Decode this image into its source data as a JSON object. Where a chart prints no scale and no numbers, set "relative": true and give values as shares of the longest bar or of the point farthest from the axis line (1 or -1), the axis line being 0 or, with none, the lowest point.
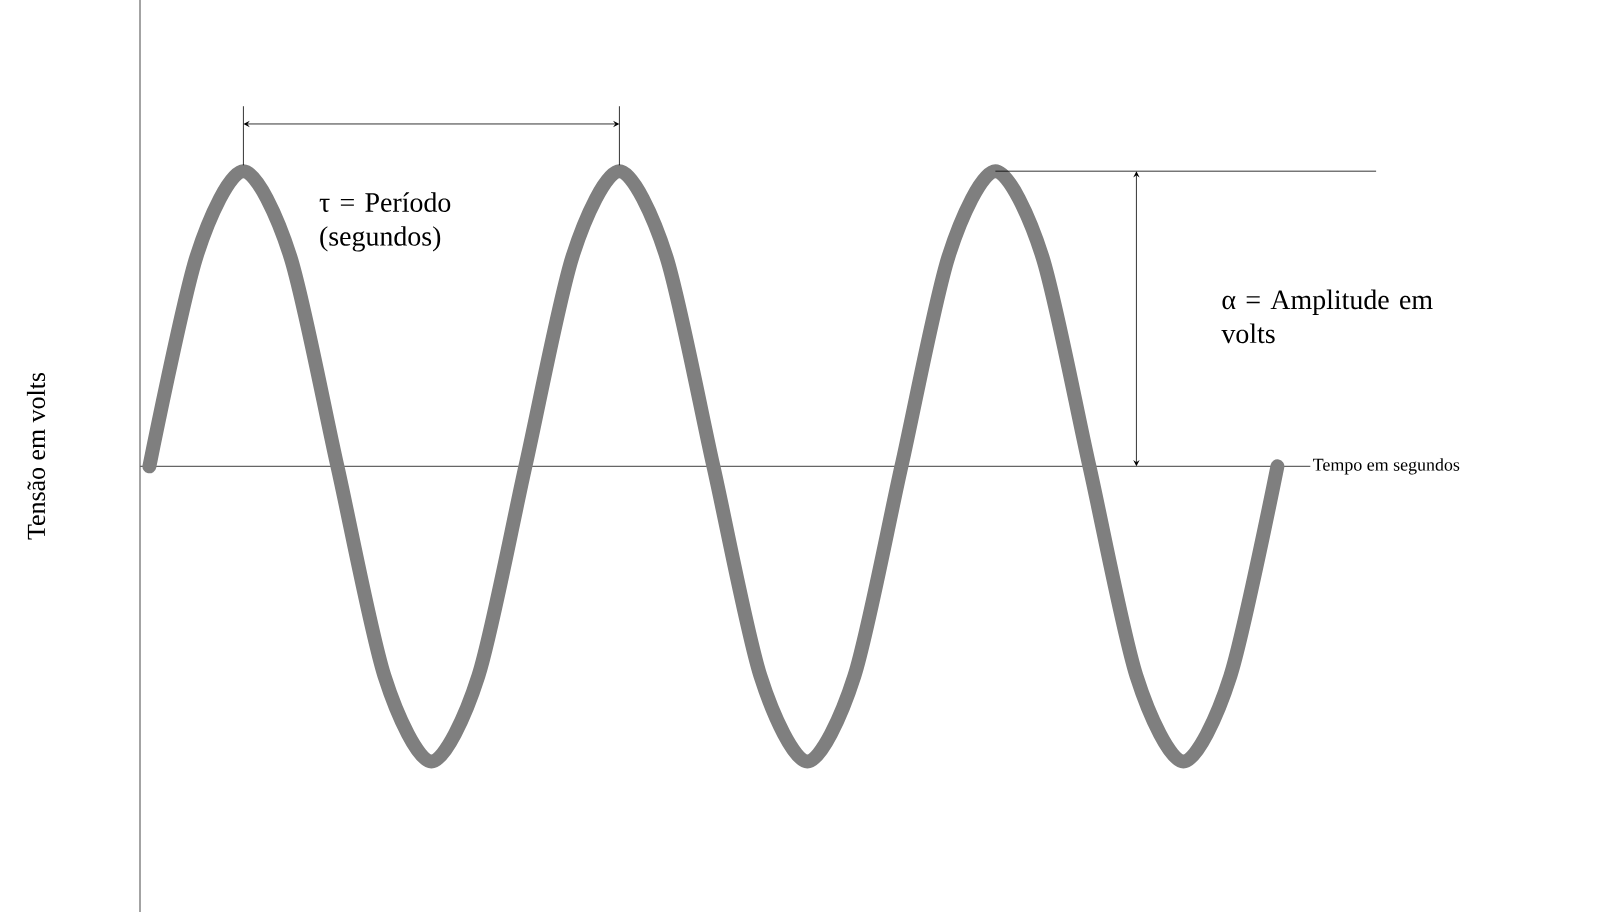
{
  "chart_data": {
    "type": "line",
    "relative": true,
    "ylabel": "Tensão em volts",
    "xlabel": "Tempo em segundos",
    "annotations": [
      "τ = Período (segundos)",
      "α = Amplitude em volts"
    ],
    "categories": [
      null,
      null,
      null,
      null,
      null,
      null,
      null,
      null,
      null,
      null,
      null,
      null,
      null,
      null,
      null,
      null,
      null,
      null,
      null,
      null,
      null,
      null,
      null,
      null,
      null
    ],
    "series": [
      {
        "color": "#7f7f7f",
        "values": [
          0,
          0.71,
          1,
          0.71,
          0,
          -0.71,
          -1,
          -0.71,
          0,
          0.71,
          1,
          0.71,
          0,
          -0.71,
          -1,
          -0.71,
          0,
          0.71,
          1,
          0.71,
          0,
          -0.71,
          -1,
          -0.71,
          0
        ]
      }
    ]
  }
}
